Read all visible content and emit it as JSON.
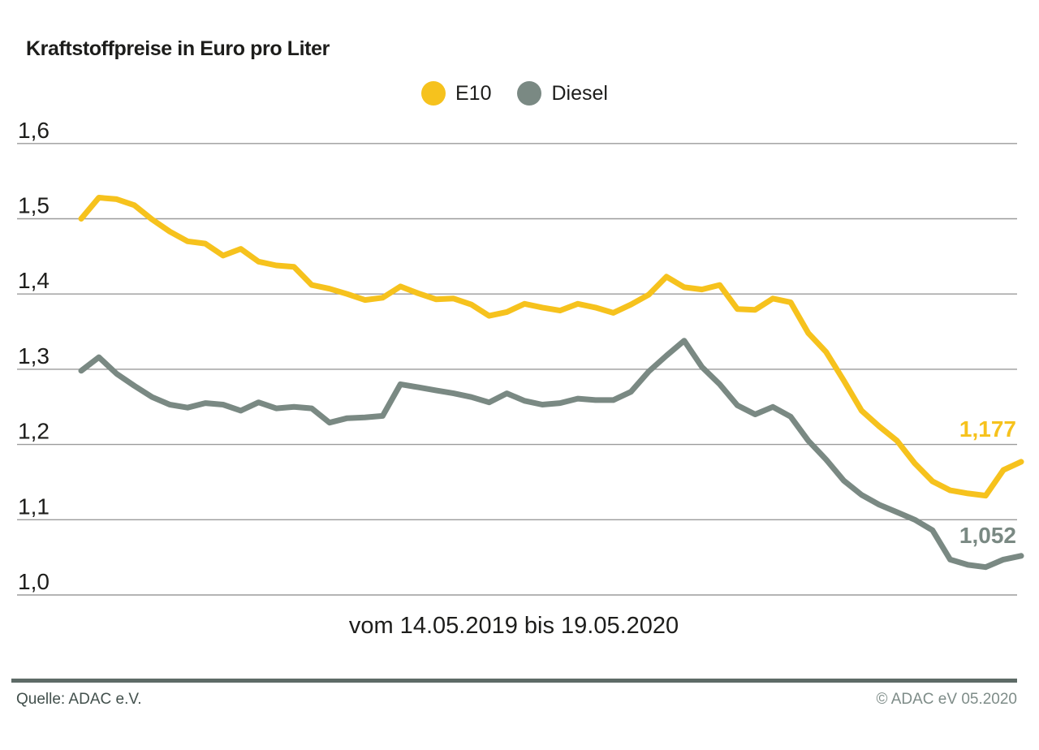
{
  "page": {
    "background": "#FFFFFF"
  },
  "chart_data": {
    "type": "line",
    "title": "Kraftstoffpreise in Euro pro Liter",
    "x_axis_label": "vom 14.05.2019 bis 19.05.2020",
    "x_range": {
      "start": "14.05.2019",
      "end": "19.05.2020"
    },
    "ylabel": "Euro pro Liter",
    "ylim": [
      1.0,
      1.6
    ],
    "grid": true,
    "legend_position": "top-center",
    "y_ticks": [
      {
        "label": "1,6",
        "value": 1.6
      },
      {
        "label": "1,5",
        "value": 1.5
      },
      {
        "label": "1,4",
        "value": 1.4
      },
      {
        "label": "1,3",
        "value": 1.3
      },
      {
        "label": "1,2",
        "value": 1.2
      },
      {
        "label": "1,1",
        "value": 1.1
      },
      {
        "label": "1,0",
        "value": 1.0
      }
    ],
    "series": [
      {
        "name": "E10",
        "color": "#F6C21D",
        "end_label": "1,177",
        "final_value": 1.177,
        "values": [
          1.5,
          1.528,
          1.526,
          1.518,
          1.499,
          1.483,
          1.47,
          1.467,
          1.451,
          1.46,
          1.443,
          1.438,
          1.436,
          1.412,
          1.407,
          1.4,
          1.392,
          1.395,
          1.41,
          1.401,
          1.393,
          1.394,
          1.386,
          1.371,
          1.376,
          1.387,
          1.382,
          1.378,
          1.387,
          1.382,
          1.375,
          1.386,
          1.399,
          1.423,
          1.409,
          1.406,
          1.412,
          1.38,
          1.379,
          1.394,
          1.389,
          1.348,
          1.323,
          1.285,
          1.245,
          1.224,
          1.205,
          1.175,
          1.151,
          1.139,
          1.135,
          1.132,
          1.166,
          1.177
        ]
      },
      {
        "name": "Diesel",
        "color": "#7A8983",
        "end_label": "1,052",
        "final_value": 1.052,
        "values": [
          1.298,
          1.316,
          1.294,
          1.278,
          1.263,
          1.253,
          1.249,
          1.255,
          1.253,
          1.245,
          1.256,
          1.248,
          1.25,
          1.248,
          1.229,
          1.235,
          1.236,
          1.238,
          1.28,
          1.276,
          1.272,
          1.268,
          1.263,
          1.256,
          1.268,
          1.258,
          1.253,
          1.255,
          1.261,
          1.259,
          1.259,
          1.27,
          1.297,
          1.318,
          1.338,
          1.303,
          1.28,
          1.252,
          1.24,
          1.25,
          1.237,
          1.205,
          1.18,
          1.152,
          1.133,
          1.12,
          1.11,
          1.1,
          1.086,
          1.047,
          1.04,
          1.037,
          1.047,
          1.052
        ]
      }
    ],
    "colors": {
      "grid": "#9B9B9B",
      "text": "#1D1D1B"
    }
  },
  "footer": {
    "source": "Quelle: ADAC e.V.",
    "copyright": "© ADAC eV 05.2020",
    "divider_color": "#5E6B67"
  }
}
